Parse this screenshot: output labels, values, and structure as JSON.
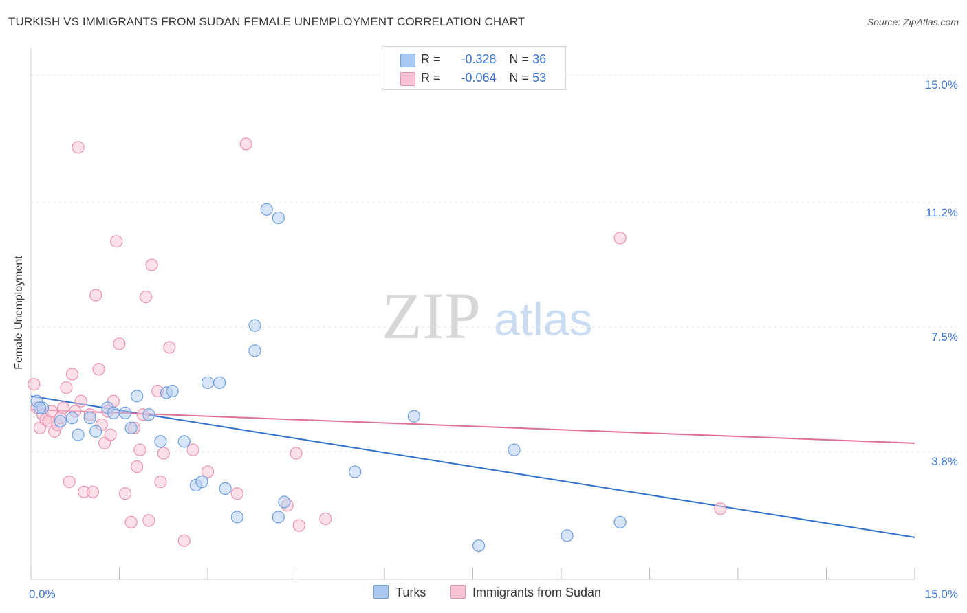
{
  "title": "TURKISH VS IMMIGRANTS FROM SUDAN FEMALE UNEMPLOYMENT CORRELATION CHART",
  "source": "Source: ZipAtlas.com",
  "watermark": {
    "zip": "ZIP",
    "atlas": "atlas"
  },
  "legend_stats": [
    {
      "r_label": "R =",
      "r_value": "-0.328",
      "n_label": "N =",
      "n_value": "36",
      "color": "#a9c8f0",
      "border": "#6f9fe0"
    },
    {
      "r_label": "R =",
      "r_value": "-0.064",
      "n_label": "N =",
      "n_value": "53",
      "color": "#f7c3d2",
      "border": "#e990ad"
    }
  ],
  "colors": {
    "blue_fill": "#b7d0f3",
    "blue_stroke": "#6e9ee0",
    "blue_line": "#2f6fd0",
    "pink_fill": "#f8c6d4",
    "pink_stroke": "#ea92b0",
    "pink_line": "#e26d95",
    "tick_label": "#3a74d0",
    "grid": "#e3e3e3"
  },
  "chart_data": {
    "type": "scatter",
    "title": "TURKISH VS IMMIGRANTS FROM SUDAN FEMALE UNEMPLOYMENT CORRELATION CHART",
    "xlabel": "",
    "ylabel": "Female Unemployment",
    "xlim": [
      0,
      15
    ],
    "ylim": [
      0,
      15.8
    ],
    "x_tick_labels": [
      {
        "value": 0,
        "label": "0.0%"
      },
      {
        "value": 15,
        "label": "15.0%"
      }
    ],
    "y_tick_labels": [
      {
        "value": 3.8,
        "label": "3.8%"
      },
      {
        "value": 7.5,
        "label": "7.5%"
      },
      {
        "value": 11.2,
        "label": "11.2%"
      },
      {
        "value": 15.0,
        "label": "15.0%"
      }
    ],
    "series": [
      {
        "name": "Turks",
        "color": "#6e9ee0",
        "trend": {
          "x": [
            0,
            15
          ],
          "y": [
            5.45,
            1.25
          ]
        },
        "points": [
          [
            0.1,
            5.3
          ],
          [
            0.2,
            5.1
          ],
          [
            0.5,
            4.7
          ],
          [
            0.7,
            4.8
          ],
          [
            0.8,
            4.3
          ],
          [
            1.0,
            4.8
          ],
          [
            1.1,
            4.4
          ],
          [
            1.3,
            5.1
          ],
          [
            1.4,
            4.95
          ],
          [
            1.6,
            4.95
          ],
          [
            1.7,
            4.5
          ],
          [
            1.8,
            5.45
          ],
          [
            2.0,
            4.9
          ],
          [
            2.2,
            4.1
          ],
          [
            2.3,
            5.55
          ],
          [
            2.4,
            5.6
          ],
          [
            2.6,
            4.1
          ],
          [
            2.8,
            2.8
          ],
          [
            2.9,
            2.9
          ],
          [
            3.0,
            5.85
          ],
          [
            3.2,
            5.85
          ],
          [
            3.3,
            2.7
          ],
          [
            3.5,
            1.85
          ],
          [
            3.8,
            6.8
          ],
          [
            3.8,
            7.55
          ],
          [
            4.0,
            11.0
          ],
          [
            4.2,
            10.75
          ],
          [
            4.2,
            1.85
          ],
          [
            4.3,
            2.3
          ],
          [
            5.5,
            3.2
          ],
          [
            6.5,
            4.85
          ],
          [
            7.6,
            1.0
          ],
          [
            8.2,
            3.85
          ],
          [
            9.1,
            1.3
          ],
          [
            10.0,
            1.7
          ],
          [
            0.15,
            5.1
          ]
        ]
      },
      {
        "name": "Immigrants from Sudan",
        "color": "#ea92b0",
        "trend": {
          "x": [
            0,
            15
          ],
          "y": [
            5.05,
            4.05
          ]
        },
        "points": [
          [
            0.05,
            5.8
          ],
          [
            0.1,
            5.1
          ],
          [
            0.15,
            4.5
          ],
          [
            0.2,
            4.9
          ],
          [
            0.25,
            4.75
          ],
          [
            0.3,
            4.7
          ],
          [
            0.35,
            5.0
          ],
          [
            0.4,
            4.4
          ],
          [
            0.45,
            4.6
          ],
          [
            0.5,
            4.8
          ],
          [
            0.6,
            5.7
          ],
          [
            0.65,
            2.9
          ],
          [
            0.7,
            6.1
          ],
          [
            0.75,
            5.0
          ],
          [
            0.8,
            12.85
          ],
          [
            0.85,
            5.3
          ],
          [
            0.9,
            2.6
          ],
          [
            1.0,
            4.9
          ],
          [
            1.05,
            2.6
          ],
          [
            1.1,
            8.45
          ],
          [
            1.15,
            6.25
          ],
          [
            1.2,
            4.6
          ],
          [
            1.25,
            4.05
          ],
          [
            1.3,
            5.0
          ],
          [
            1.35,
            4.3
          ],
          [
            1.4,
            5.3
          ],
          [
            1.45,
            10.05
          ],
          [
            1.5,
            7.0
          ],
          [
            1.6,
            2.55
          ],
          [
            1.7,
            1.7
          ],
          [
            1.75,
            4.5
          ],
          [
            1.8,
            3.35
          ],
          [
            1.85,
            3.85
          ],
          [
            1.9,
            4.9
          ],
          [
            1.95,
            8.4
          ],
          [
            2.0,
            1.75
          ],
          [
            2.05,
            9.35
          ],
          [
            2.15,
            5.6
          ],
          [
            2.2,
            2.9
          ],
          [
            2.25,
            3.75
          ],
          [
            2.35,
            6.9
          ],
          [
            2.6,
            1.15
          ],
          [
            2.75,
            3.85
          ],
          [
            3.0,
            3.2
          ],
          [
            3.5,
            2.55
          ],
          [
            3.65,
            12.95
          ],
          [
            4.35,
            2.2
          ],
          [
            4.5,
            3.75
          ],
          [
            4.55,
            1.6
          ],
          [
            5.0,
            1.8
          ],
          [
            10.0,
            10.15
          ],
          [
            11.7,
            2.1
          ],
          [
            0.55,
            5.1
          ]
        ]
      }
    ],
    "grid": true,
    "legend": "bottom-center"
  }
}
